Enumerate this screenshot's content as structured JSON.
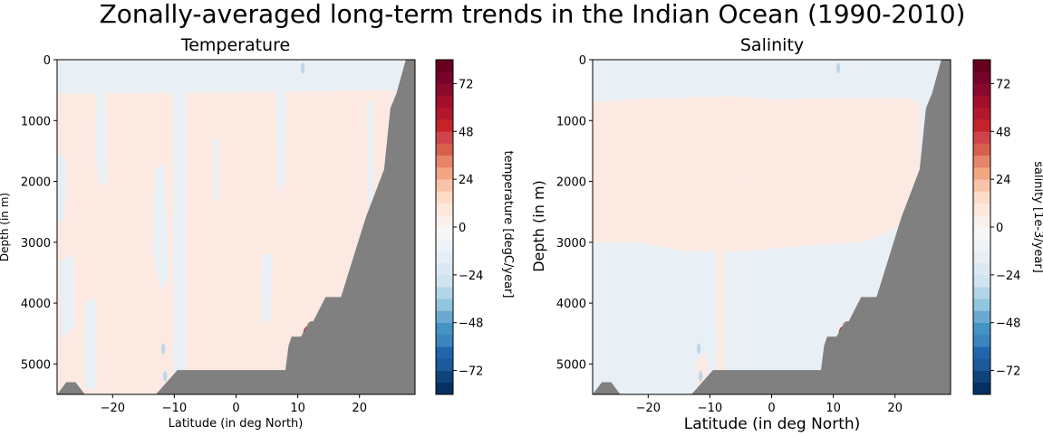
{
  "suptitle": "Zonally-averaged long-term trends in the Indian Ocean (1990-2010)",
  "colors": {
    "land": "#808080",
    "positive_weak": "#fbe9e2",
    "negative_weak": "#e9f0f5",
    "hot": "#c5232a",
    "deep_hot": "#67001f",
    "deep_cold": "#053061"
  },
  "chart_data": [
    {
      "type": "heatmap",
      "title": "Temperature",
      "xlabel": "Latitude (in deg North)",
      "ylabel": "Depth (in m)",
      "xlim": [
        -29,
        29
      ],
      "ylim": [
        5500,
        0
      ],
      "yaxis_inverted": true,
      "xticks": [
        -20,
        -10,
        0,
        10,
        20
      ],
      "xtick_labels": [
        "−20",
        "−10",
        "0",
        "10",
        "20"
      ],
      "yticks": [
        0,
        1000,
        2000,
        3000,
        4000,
        5000
      ],
      "ytick_labels": [
        "0",
        "1000",
        "2000",
        "3000",
        "4000",
        "5000"
      ],
      "colorbar": {
        "label": "temperature [degC/year]",
        "levels": [
          -84,
          -78,
          -72,
          -66,
          -60,
          -54,
          -48,
          -42,
          -36,
          -30,
          -24,
          -18,
          -12,
          -6,
          0,
          6,
          12,
          18,
          24,
          30,
          36,
          42,
          48,
          54,
          60,
          66,
          72,
          78,
          84
        ],
        "colors": [
          "#053061",
          "#0f437b",
          "#1b5a9b",
          "#2166ac",
          "#3a85bf",
          "#4393c3",
          "#6ba9d0",
          "#92c5de",
          "#b3d5e8",
          "#d1e5f0",
          "#dde9f2",
          "#e6eff5",
          "#eef4f8",
          "#f7f7f7",
          "#fbf1ec",
          "#fde8dc",
          "#fddbc7",
          "#f9c3a9",
          "#f4a582",
          "#e88469",
          "#d6604d",
          "#cf444a",
          "#c5232a",
          "#b2182b",
          "#a10f2b",
          "#8a0a2c",
          "#76042a",
          "#67001f"
        ],
        "ticks": [
          -72,
          -48,
          -24,
          0,
          24,
          48,
          72
        ],
        "tick_labels": [
          "−72",
          "−48",
          "−24",
          "0",
          "24",
          "48",
          "72"
        ]
      },
      "field": {
        "background_trend": "weak positive",
        "near_surface_band_trend": "weak negative",
        "hotspot": {
          "lat": 11.5,
          "depth": 4450,
          "sign": "positive"
        }
      },
      "bathymetry": {
        "lat": [
          -29,
          -27.5,
          -26,
          -24.5,
          -23,
          -13,
          -9.5,
          8,
          8.5,
          9,
          10.5,
          12,
          12.5,
          14.5,
          17,
          21,
          24,
          25,
          26,
          27.5,
          29
        ],
        "depth": [
          5500,
          5300,
          5300,
          5500,
          5500,
          5500,
          5100,
          5100,
          4700,
          4550,
          4550,
          4300,
          4300,
          3900,
          3900,
          2600,
          1800,
          800,
          550,
          0,
          0
        ]
      }
    },
    {
      "type": "heatmap",
      "title": "Salinity",
      "xlabel": "Latitude (in deg North)",
      "ylabel": "Depth (in m)",
      "xlim": [
        -29,
        29
      ],
      "ylim": [
        5500,
        0
      ],
      "yaxis_inverted": true,
      "xticks": [
        -20,
        -10,
        0,
        10,
        20
      ],
      "xtick_labels": [
        "−20",
        "−10",
        "0",
        "10",
        "20"
      ],
      "yticks": [
        0,
        1000,
        2000,
        3000,
        4000,
        5000
      ],
      "ytick_labels": [
        "0",
        "1000",
        "2000",
        "3000",
        "4000",
        "5000"
      ],
      "colorbar": {
        "label": "salinity [1e-3/year]",
        "levels": [
          -84,
          -78,
          -72,
          -66,
          -60,
          -54,
          -48,
          -42,
          -36,
          -30,
          -24,
          -18,
          -12,
          -6,
          0,
          6,
          12,
          18,
          24,
          30,
          36,
          42,
          48,
          54,
          60,
          66,
          72,
          78,
          84
        ],
        "colors": [
          "#053061",
          "#0f437b",
          "#1b5a9b",
          "#2166ac",
          "#3a85bf",
          "#4393c3",
          "#6ba9d0",
          "#92c5de",
          "#b3d5e8",
          "#d1e5f0",
          "#dde9f2",
          "#e6eff5",
          "#eef4f8",
          "#f7f7f7",
          "#fbf1ec",
          "#fde8dc",
          "#fddbc7",
          "#f9c3a9",
          "#f4a582",
          "#e88469",
          "#d6604d",
          "#cf444a",
          "#c5232a",
          "#b2182b",
          "#a10f2b",
          "#8a0a2c",
          "#76042a",
          "#67001f"
        ],
        "ticks": [
          -72,
          -48,
          -24,
          0,
          24,
          48,
          72
        ],
        "tick_labels": [
          "−72",
          "−48",
          "−24",
          "0",
          "24",
          "48",
          "72"
        ]
      },
      "field": {
        "background_trend": "weak negative",
        "deep_band_trend": "weak positive",
        "hotspot": {
          "lat": 11.5,
          "depth": 4450,
          "sign": "positive"
        }
      },
      "bathymetry": {
        "lat": [
          -29,
          -27.5,
          -26,
          -24.5,
          -23,
          -13,
          -9.5,
          8,
          8.5,
          9,
          10.5,
          12,
          12.5,
          14.5,
          17,
          21,
          24,
          25,
          26,
          27.5,
          29
        ],
        "depth": [
          5500,
          5300,
          5300,
          5500,
          5500,
          5500,
          5100,
          5100,
          4700,
          4550,
          4550,
          4300,
          4300,
          3900,
          3900,
          2600,
          1800,
          800,
          550,
          0,
          0
        ]
      }
    }
  ]
}
